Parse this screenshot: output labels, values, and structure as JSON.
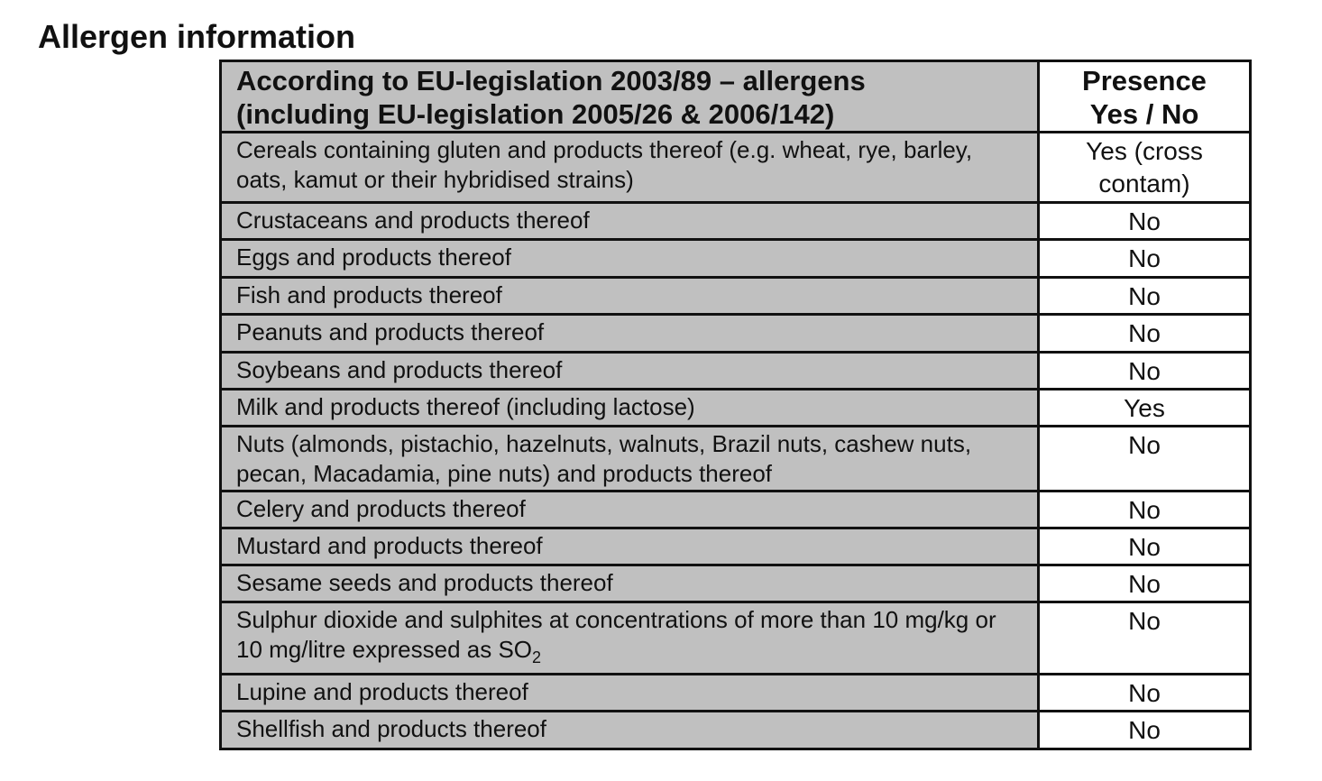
{
  "title": "Allergen information",
  "table": {
    "header": {
      "allergen": [
        "According to EU-legislation 2003/89 – allergens",
        "(including EU-legislation 2005/26 & 2006/142)"
      ],
      "presence": [
        "Presence",
        "Yes / No"
      ]
    },
    "rows": [
      {
        "allergen": "Cereals containing gluten and products thereof (e.g. wheat, rye, barley, oats, kamut or their hybridised strains)",
        "presence": "Yes (cross contam)"
      },
      {
        "allergen": "Crustaceans and products thereof",
        "presence": "No"
      },
      {
        "allergen": "Eggs and products thereof",
        "presence": "No"
      },
      {
        "allergen": "Fish and products thereof",
        "presence": "No"
      },
      {
        "allergen": "Peanuts and products thereof",
        "presence": "No"
      },
      {
        "allergen": "Soybeans and products thereof",
        "presence": "No"
      },
      {
        "allergen": "Milk and products thereof (including lactose)",
        "presence": "Yes"
      },
      {
        "allergen": "Nuts (almonds, pistachio, hazelnuts, walnuts, Brazil nuts, cashew nuts, pecan, Macadamia, pine nuts) and products thereof",
        "presence": "No"
      },
      {
        "allergen": "Celery and products thereof",
        "presence": "No"
      },
      {
        "allergen": "Mustard and products thereof",
        "presence": "No"
      },
      {
        "allergen": "Sesame seeds and products thereof",
        "presence": "No"
      },
      {
        "allergen": "Sulphur dioxide and sulphites at concentrations of more than 10 mg/kg or 10 mg/litre expressed as SO",
        "subscript": "2",
        "presence": "No"
      },
      {
        "allergen": "Lupine and products thereof",
        "presence": "No"
      },
      {
        "allergen": "Shellfish and products thereof",
        "presence": "No"
      }
    ]
  }
}
